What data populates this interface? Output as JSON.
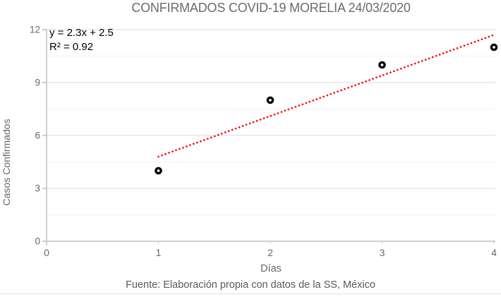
{
  "title": "CONFIRMADOS COVID-19 MORELIA 24/03/2020",
  "annotation": {
    "equation_label": "y = 2.3x + 2.5",
    "r2_label": "R² = 0.92"
  },
  "footer": "Fuente: Elaboración propia con datos de la SS, México",
  "chart_data": {
    "type": "scatter",
    "title": "CONFIRMADOS COVID-19 MORELIA 24/03/2020",
    "xlabel": "Días",
    "ylabel": "Casos Confirmados",
    "points": [
      [
        1,
        4
      ],
      [
        2,
        8
      ],
      [
        3,
        10
      ],
      [
        4,
        11
      ]
    ],
    "trendline": {
      "slope": 2.3,
      "intercept": 2.5,
      "r2": 0.92,
      "x_start": 1,
      "x_end": 4,
      "style": "dotted",
      "color": "#ff0000"
    },
    "xlim": [
      0,
      4
    ],
    "ylim": [
      0,
      12
    ],
    "x_ticks": [
      0,
      1,
      2,
      3,
      4
    ],
    "y_ticks": [
      0,
      3,
      6,
      9,
      12
    ],
    "y_minor_gridlines": [
      1.5,
      4.5,
      7.5,
      10.5
    ],
    "grid": "horizontal major + minor",
    "legend": "none",
    "marker_style": "black ring",
    "colors": {
      "marker": "#000000",
      "trend": "#ff0000",
      "grid_major": "#d9d9d9",
      "grid_minor": "#f2f2f2",
      "axis": "#bfbfbf",
      "text": "#666666",
      "title_text": "#6b6b6b"
    }
  }
}
